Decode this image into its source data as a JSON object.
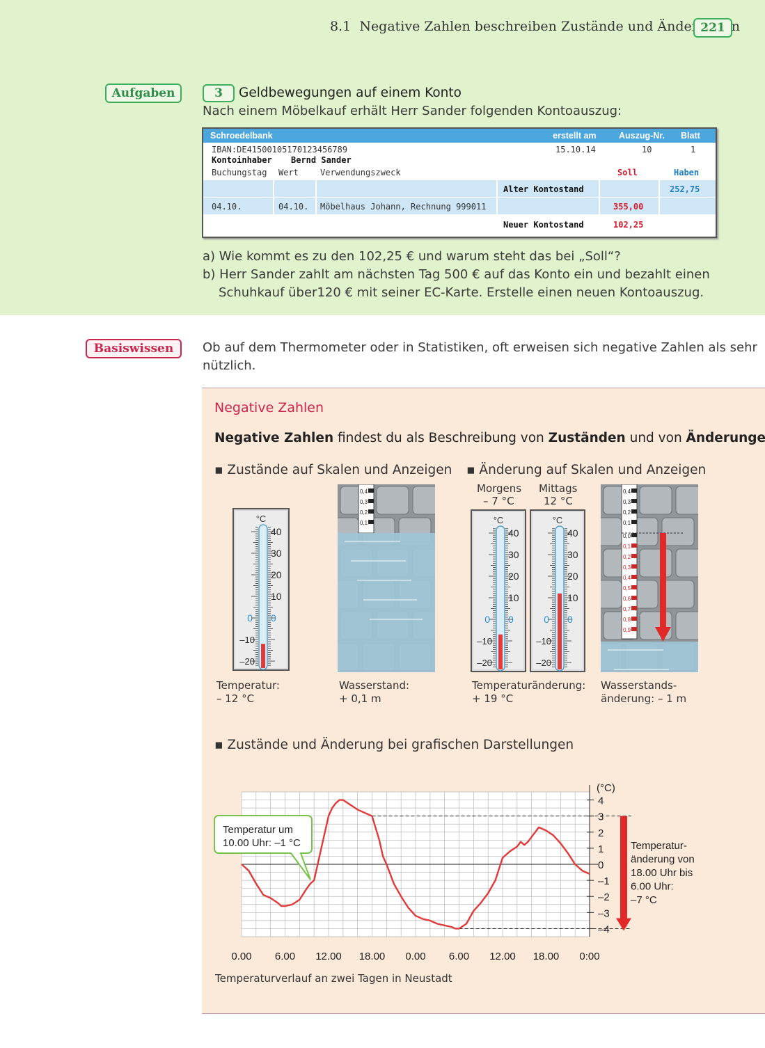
{
  "header": {
    "section": "8.1",
    "title": "Negative Zahlen beschreiben  Zustände und Änderungen",
    "page_number": "221"
  },
  "aufgaben": {
    "tag": "Aufgaben",
    "number": "3",
    "title": "Geldbewegungen auf einem Konto",
    "intro": "Nach einem Möbelkauf erhält Herr Sander folgenden Kontoauszug:",
    "statement": {
      "bank": "Schroedelbank",
      "created_label": "erstellt am",
      "auszug_label": "Auszug-Nr.",
      "blatt_label": "Blatt",
      "iban": "IBAN:DE41500105170123456789",
      "date": "15.10.14",
      "auszug_nr": "10",
      "blatt": "1",
      "owner_label": "Kontoinhaber",
      "owner": "Bernd Sander",
      "col_buchung": "Buchungstag",
      "col_wert": "Wert",
      "col_zweck": "Verwendungszweck",
      "col_soll": "Soll",
      "col_haben": "Haben",
      "alter_label": "Alter Kontostand",
      "alter_value": "252,75",
      "row_buchung": "04.10.",
      "row_wert": "04.10.",
      "row_zweck": "Möbelhaus Johann, Rechnung 999011",
      "row_soll": "355,00",
      "neuer_label": "Neuer Kontostand",
      "neuer_value": "102,25"
    },
    "q_a": "a) Wie kommt es zu den 102,25 € und warum steht das bei „Soll“?",
    "q_b1": "b) Herr Sander zahlt am nächsten Tag 500 € auf das Konto ein und bezahlt einen",
    "q_b2": "Schuhkauf über120 € mit seiner EC-Karte. Erstelle einen neuen Kontoauszug."
  },
  "basiswissen": {
    "tag": "Basiswissen",
    "intro1": "Ob auf dem Thermometer oder in Statistiken, oft erweisen sich negative Zahlen als sehr",
    "intro2": "nützlich.",
    "box_title": "Negative Zahlen",
    "lead_b1": "Negative Zahlen",
    "lead_t1": " findest du als Beschreibung von ",
    "lead_b2": "Zuständen",
    "lead_t2": " und von ",
    "lead_b3": "Änderungen",
    "lead_t3": ".",
    "bullet1": "Zustände auf Skalen und Anzeigen",
    "bullet2": "Änderung auf Skalen und Anzeigen",
    "bullet3": "Zustände und Änderung bei grafischen Darstellungen",
    "morgens_label": "Morgens",
    "morgens_value": "– 7 °C",
    "mittags_label": "Mittags",
    "mittags_value": "12 °C",
    "cap1_l1": "Temperatur:",
    "cap1_l2": "– 12 °C",
    "cap2_l1": "Wasserstand:",
    "cap2_l2": "+ 0,1 m",
    "cap3_l1": "Temperaturänderung:",
    "cap3_l2": "+ 19 °C",
    "cap4_l1": "Wasserstands-",
    "cap4_l2": "änderung: – 1 m",
    "thermo_unit": "°C",
    "thermo_ticks": [
      "40",
      "30",
      "20",
      "10",
      "0",
      "0",
      "–10",
      "–20"
    ],
    "gauge_ticks_pos": [
      "0,4",
      "0,3",
      "0,2",
      "0,1"
    ],
    "gauge_ticks_neg": [
      "0,0",
      "0,1",
      "0,2",
      "0,3",
      "0,4",
      "0,5",
      "0,6",
      "0,7",
      "0,8",
      "0,9"
    ],
    "chart_caption": "Temperaturverlauf an zwei Tagen in Neustadt"
  },
  "chart_data": {
    "type": "line",
    "title": "",
    "xlabel": "",
    "ylabel": "(°C)",
    "x_ticks": [
      "0.00",
      "6.00",
      "12.00",
      "18.00",
      "0.00",
      "6.00",
      "12.00",
      "18.00",
      "0:00"
    ],
    "y_ticks": [
      "4",
      "3",
      "2",
      "1",
      "0",
      "–1",
      "–2",
      "–3",
      "–4"
    ],
    "ylim": [
      -4.5,
      4.5
    ],
    "xlim": [
      0,
      48
    ],
    "grid": true,
    "series": [
      {
        "x": [
          0,
          1,
          2,
          3,
          4,
          5,
          5.5,
          6,
          7,
          8,
          9,
          9.5,
          10,
          11,
          12,
          12.5,
          13,
          13.5,
          14,
          15,
          16,
          17,
          18,
          19,
          19.5,
          20,
          21,
          22,
          23,
          24,
          25,
          26,
          27,
          28,
          29,
          29.5,
          30,
          31,
          32,
          33,
          34,
          35,
          36,
          37,
          38,
          38.5,
          39,
          39.5,
          40,
          41,
          42,
          43,
          44,
          45,
          46,
          47,
          48
        ],
        "values": [
          0,
          -0.4,
          -1.2,
          -1.9,
          -2.1,
          -2.4,
          -2.6,
          -2.6,
          -2.5,
          -2.2,
          -1.5,
          -1.2,
          -1.0,
          1.0,
          3.0,
          3.5,
          3.8,
          4.0,
          4.0,
          3.7,
          3.4,
          3.2,
          3.0,
          1.5,
          0.5,
          0.0,
          -1.2,
          -2.0,
          -2.7,
          -3.2,
          -3.4,
          -3.5,
          -3.7,
          -3.8,
          -3.9,
          -4.0,
          -4.0,
          -3.7,
          -2.9,
          -2.4,
          -1.8,
          -1.0,
          0.4,
          0.8,
          1.1,
          1.4,
          1.2,
          1.4,
          1.7,
          2.3,
          2.1,
          1.8,
          1.3,
          0.7,
          0.0,
          -0.4,
          -0.6
        ]
      }
    ],
    "annotations": [
      {
        "text_l1": "Temperatur um",
        "text_l2": "10.00 Uhr: –1 °C",
        "x": 10,
        "y": -1
      },
      {
        "text_l1": "Temperatur-",
        "text_l2": "änderung von",
        "text_l3": "18.00 Uhr bis",
        "text_l4": "6.00 Uhr:",
        "text_l5": "–7  °C",
        "from": 3,
        "to": -4
      }
    ],
    "colors": {
      "line": "#e03a3a",
      "arrow": "#e02a2a"
    }
  },
  "colors": {
    "green_band": "#e1f3cd",
    "green_accent": "#3fae5c",
    "red_accent": "#c8264d",
    "box_bg": "#fbe9d9",
    "bank_blue": "#4aa6dd"
  }
}
